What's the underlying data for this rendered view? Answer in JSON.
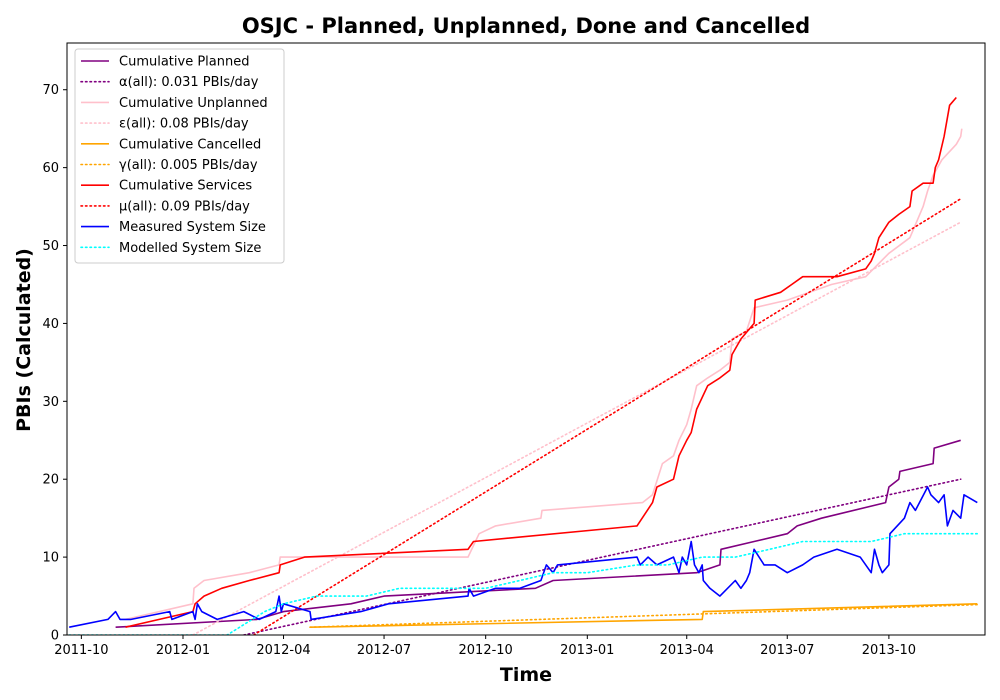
{
  "chart_data": {
    "type": "line",
    "title": "OSJC - Planned, Unplanned, Done  and Cancelled",
    "xlabel": "Time",
    "ylabel": "PBIs (Calculated)",
    "xlim": [
      "2011-09-18",
      "2013-12-27"
    ],
    "ylim": [
      0,
      76
    ],
    "x_ticks": [
      "2011-10-01",
      "2012-01-01",
      "2012-04-01",
      "2012-07-01",
      "2012-10-01",
      "2013-01-01",
      "2013-04-01",
      "2013-07-01",
      "2013-10-01"
    ],
    "x_tick_labels": [
      "2011-10",
      "2012-01",
      "2012-04",
      "2012-07",
      "2012-10",
      "2013-01",
      "2013-04",
      "2013-07",
      "2013-10"
    ],
    "y_ticks": [
      0,
      10,
      20,
      30,
      40,
      50,
      60,
      70
    ],
    "grid": false,
    "legend_position": "top-left",
    "series": [
      {
        "name": "Cumulative Planned",
        "color": "#800080",
        "style": "solid",
        "points": [
          [
            "2011-11-01",
            1
          ],
          [
            "2012-03-08",
            2
          ],
          [
            "2012-04-01",
            3
          ],
          [
            "2012-06-01",
            4
          ],
          [
            "2012-07-01",
            5
          ],
          [
            "2012-11-15",
            6
          ],
          [
            "2012-12-01",
            7
          ],
          [
            "2013-04-10",
            8
          ],
          [
            "2013-05-01",
            9
          ],
          [
            "2013-05-02",
            11
          ],
          [
            "2013-06-01",
            12
          ],
          [
            "2013-07-01",
            13
          ],
          [
            "2013-07-10",
            14
          ],
          [
            "2013-08-01",
            15
          ],
          [
            "2013-09-28",
            17
          ],
          [
            "2013-10-01",
            19
          ],
          [
            "2013-10-10",
            20
          ],
          [
            "2013-10-11",
            21
          ],
          [
            "2013-11-10",
            22
          ],
          [
            "2013-11-11",
            24
          ],
          [
            "2013-12-05",
            25
          ]
        ]
      },
      {
        "name": "α(all): 0.031 PBIs/day",
        "color": "#800080",
        "style": "dotted",
        "points": [
          [
            "2012-02-25",
            0
          ],
          [
            "2013-12-05",
            20
          ]
        ]
      },
      {
        "name": "Cumulative Unplanned",
        "color": "#ffc0cb",
        "style": "solid",
        "points": [
          [
            "2011-11-10",
            2
          ],
          [
            "2012-01-10",
            4
          ],
          [
            "2012-01-11",
            6
          ],
          [
            "2012-01-20",
            7
          ],
          [
            "2012-03-01",
            8
          ],
          [
            "2012-03-28",
            9
          ],
          [
            "2012-03-29",
            10
          ],
          [
            "2012-09-15",
            10
          ],
          [
            "2012-09-25",
            13
          ],
          [
            "2012-10-10",
            14
          ],
          [
            "2012-11-20",
            15
          ],
          [
            "2012-11-21",
            16
          ],
          [
            "2013-02-20",
            17
          ],
          [
            "2013-03-01",
            18
          ],
          [
            "2013-03-10",
            22
          ],
          [
            "2013-03-20",
            23
          ],
          [
            "2013-03-25",
            25
          ],
          [
            "2013-04-01",
            27
          ],
          [
            "2013-04-05",
            29
          ],
          [
            "2013-04-10",
            32
          ],
          [
            "2013-04-20",
            33
          ],
          [
            "2013-05-01",
            34
          ],
          [
            "2013-05-10",
            35
          ],
          [
            "2013-05-12",
            38
          ],
          [
            "2013-05-25",
            39
          ],
          [
            "2013-06-01",
            42
          ],
          [
            "2013-07-01",
            43
          ],
          [
            "2013-08-10",
            45
          ],
          [
            "2013-09-10",
            46
          ],
          [
            "2013-10-01",
            49
          ],
          [
            "2013-10-20",
            51
          ],
          [
            "2013-11-01",
            55
          ],
          [
            "2013-11-05",
            57
          ],
          [
            "2013-11-10",
            59
          ],
          [
            "2013-11-18",
            61
          ],
          [
            "2013-12-01",
            63
          ],
          [
            "2013-12-05",
            64
          ],
          [
            "2013-12-06",
            65
          ]
        ]
      },
      {
        "name": "ε(all): 0.08 PBIs/day",
        "color": "#ffc0cb",
        "style": "dotted",
        "points": [
          [
            "2012-01-10",
            0
          ],
          [
            "2013-12-05",
            53
          ]
        ]
      },
      {
        "name": "Cumulative Cancelled",
        "color": "#ffa500",
        "style": "solid",
        "points": [
          [
            "2012-04-25",
            1
          ],
          [
            "2013-04-15",
            2
          ],
          [
            "2013-04-16",
            3
          ],
          [
            "2013-12-20",
            4
          ]
        ]
      },
      {
        "name": "γ(all): 0.005 PBIs/day",
        "color": "#ffa500",
        "style": "dotted",
        "points": [
          [
            "2012-04-25",
            1
          ],
          [
            "2013-12-20",
            3.9
          ]
        ]
      },
      {
        "name": "Cumulative Services",
        "color": "#ff0000",
        "style": "solid",
        "points": [
          [
            "2011-11-10",
            1
          ],
          [
            "2012-01-10",
            3
          ],
          [
            "2012-01-12",
            4
          ],
          [
            "2012-01-20",
            5
          ],
          [
            "2012-02-05",
            6
          ],
          [
            "2012-03-01",
            7
          ],
          [
            "2012-03-28",
            8
          ],
          [
            "2012-03-29",
            9
          ],
          [
            "2012-04-20",
            10
          ],
          [
            "2012-09-15",
            11
          ],
          [
            "2012-09-20",
            12
          ],
          [
            "2013-02-15",
            14
          ],
          [
            "2013-03-01",
            17
          ],
          [
            "2013-03-05",
            19
          ],
          [
            "2013-03-20",
            20
          ],
          [
            "2013-03-25",
            23
          ],
          [
            "2013-04-01",
            25
          ],
          [
            "2013-04-05",
            26
          ],
          [
            "2013-04-10",
            29
          ],
          [
            "2013-04-20",
            32
          ],
          [
            "2013-05-01",
            33
          ],
          [
            "2013-05-10",
            34
          ],
          [
            "2013-05-12",
            36
          ],
          [
            "2013-05-20",
            38
          ],
          [
            "2013-06-01",
            40
          ],
          [
            "2013-06-02",
            43
          ],
          [
            "2013-06-25",
            44
          ],
          [
            "2013-07-05",
            45
          ],
          [
            "2013-07-15",
            46
          ],
          [
            "2013-08-15",
            46
          ],
          [
            "2013-09-10",
            47
          ],
          [
            "2013-09-15",
            48
          ],
          [
            "2013-09-18",
            49
          ],
          [
            "2013-09-22",
            51
          ],
          [
            "2013-10-01",
            53
          ],
          [
            "2013-10-10",
            54
          ],
          [
            "2013-10-20",
            55
          ],
          [
            "2013-10-22",
            57
          ],
          [
            "2013-11-01",
            58
          ],
          [
            "2013-11-10",
            58
          ],
          [
            "2013-11-12",
            60
          ],
          [
            "2013-11-15",
            61
          ],
          [
            "2013-11-20",
            64
          ],
          [
            "2013-11-25",
            68
          ],
          [
            "2013-12-01",
            69
          ]
        ]
      },
      {
        "name": "μ(all): 0.09 PBIs/day",
        "color": "#ff0000",
        "style": "dotted",
        "points": [
          [
            "2012-03-05",
            0
          ],
          [
            "2013-12-05",
            56
          ]
        ]
      },
      {
        "name": "Measured System Size",
        "color": "#0000ff",
        "style": "solid",
        "points": [
          [
            "2011-09-20",
            1
          ],
          [
            "2011-10-25",
            2
          ],
          [
            "2011-11-01",
            3
          ],
          [
            "2011-11-05",
            2
          ],
          [
            "2011-11-15",
            2
          ],
          [
            "2011-12-20",
            3
          ],
          [
            "2011-12-22",
            2
          ],
          [
            "2012-01-10",
            3
          ],
          [
            "2012-01-12",
            2
          ],
          [
            "2012-01-14",
            4
          ],
          [
            "2012-01-18",
            3
          ],
          [
            "2012-02-01",
            2
          ],
          [
            "2012-02-25",
            3
          ],
          [
            "2012-03-10",
            2
          ],
          [
            "2012-03-25",
            3
          ],
          [
            "2012-03-28",
            5
          ],
          [
            "2012-03-30",
            3
          ],
          [
            "2012-04-01",
            4
          ],
          [
            "2012-04-25",
            3
          ],
          [
            "2012-04-26",
            2
          ],
          [
            "2012-06-10",
            3
          ],
          [
            "2012-07-05",
            4
          ],
          [
            "2012-09-15",
            5
          ],
          [
            "2012-09-16",
            6
          ],
          [
            "2012-09-20",
            5
          ],
          [
            "2012-10-10",
            6
          ],
          [
            "2012-11-01",
            6
          ],
          [
            "2012-11-20",
            7
          ],
          [
            "2012-11-25",
            9
          ],
          [
            "2012-12-01",
            8
          ],
          [
            "2012-12-05",
            9
          ],
          [
            "2013-02-15",
            10
          ],
          [
            "2013-02-18",
            9
          ],
          [
            "2013-02-25",
            10
          ],
          [
            "2013-03-05",
            9
          ],
          [
            "2013-03-20",
            10
          ],
          [
            "2013-03-25",
            8
          ],
          [
            "2013-03-28",
            10
          ],
          [
            "2013-04-01",
            9
          ],
          [
            "2013-04-05",
            12
          ],
          [
            "2013-04-08",
            9
          ],
          [
            "2013-04-12",
            8
          ],
          [
            "2013-04-15",
            9
          ],
          [
            "2013-04-16",
            7
          ],
          [
            "2013-04-22",
            6
          ],
          [
            "2013-05-01",
            5
          ],
          [
            "2013-05-15",
            7
          ],
          [
            "2013-05-20",
            6
          ],
          [
            "2013-05-25",
            7
          ],
          [
            "2013-05-28",
            8
          ],
          [
            "2013-06-01",
            11
          ],
          [
            "2013-06-10",
            9
          ],
          [
            "2013-06-20",
            9
          ],
          [
            "2013-07-01",
            8
          ],
          [
            "2013-07-15",
            9
          ],
          [
            "2013-07-25",
            10
          ],
          [
            "2013-08-15",
            11
          ],
          [
            "2013-09-05",
            10
          ],
          [
            "2013-09-15",
            8
          ],
          [
            "2013-09-18",
            11
          ],
          [
            "2013-09-22",
            9
          ],
          [
            "2013-09-25",
            8
          ],
          [
            "2013-10-01",
            9
          ],
          [
            "2013-10-02",
            13
          ],
          [
            "2013-10-15",
            15
          ],
          [
            "2013-10-20",
            17
          ],
          [
            "2013-10-25",
            16
          ],
          [
            "2013-11-05",
            19
          ],
          [
            "2013-11-08",
            18
          ],
          [
            "2013-11-15",
            17
          ],
          [
            "2013-11-20",
            18
          ],
          [
            "2013-11-23",
            14
          ],
          [
            "2013-11-28",
            16
          ],
          [
            "2013-12-05",
            15
          ],
          [
            "2013-12-08",
            18
          ],
          [
            "2013-12-20",
            17
          ]
        ]
      },
      {
        "name": "Modelled System Size",
        "color": "#00ffff",
        "style": "dotted",
        "points": [
          [
            "2011-09-20",
            0
          ],
          [
            "2012-02-10",
            0
          ],
          [
            "2012-03-15",
            3
          ],
          [
            "2012-04-01",
            4
          ],
          [
            "2012-05-01",
            5
          ],
          [
            "2012-06-15",
            5
          ],
          [
            "2012-07-15",
            6
          ],
          [
            "2012-09-01",
            6
          ],
          [
            "2012-10-01",
            6
          ],
          [
            "2012-11-01",
            7
          ],
          [
            "2012-12-01",
            8
          ],
          [
            "2013-01-01",
            8
          ],
          [
            "2013-02-15",
            9
          ],
          [
            "2013-03-15",
            9
          ],
          [
            "2013-04-15",
            10
          ],
          [
            "2013-05-15",
            10
          ],
          [
            "2013-06-15",
            11
          ],
          [
            "2013-07-15",
            12
          ],
          [
            "2013-08-15",
            12
          ],
          [
            "2013-09-15",
            12
          ],
          [
            "2013-10-15",
            13
          ],
          [
            "2013-11-15",
            13
          ],
          [
            "2013-12-20",
            13
          ]
        ]
      }
    ]
  }
}
